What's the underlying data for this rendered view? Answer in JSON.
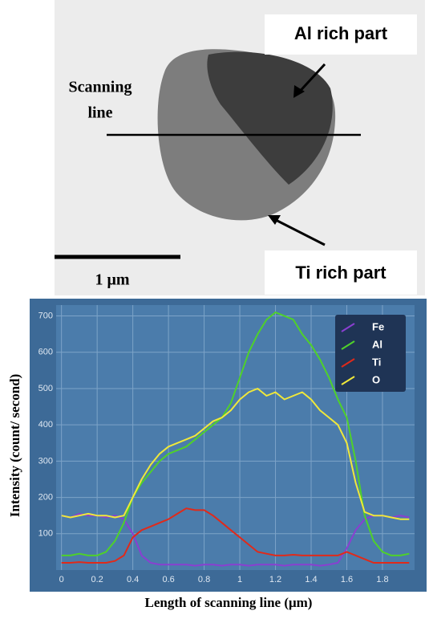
{
  "micrograph": {
    "al_label": "Al rich part",
    "scan_label": [
      "Scanning",
      "line"
    ],
    "ti_label": "Ti rich part",
    "scale_label": "1 μm"
  },
  "chart_data": {
    "type": "line",
    "xlabel": "Length of scanning line (μm)",
    "ylabel": "Intensity (count/ second)",
    "x": [
      0,
      0.05,
      0.1,
      0.15,
      0.2,
      0.25,
      0.3,
      0.35,
      0.4,
      0.45,
      0.5,
      0.55,
      0.6,
      0.65,
      0.7,
      0.75,
      0.8,
      0.85,
      0.9,
      0.95,
      1,
      1.05,
      1.1,
      1.15,
      1.2,
      1.25,
      1.3,
      1.35,
      1.4,
      1.45,
      1.5,
      1.55,
      1.6,
      1.65,
      1.7,
      1.75,
      1.8,
      1.85,
      1.9,
      1.95
    ],
    "series": [
      {
        "name": "Fe",
        "color": "#8a3fd1",
        "values": [
          150,
          145,
          155,
          150,
          150,
          145,
          150,
          140,
          100,
          40,
          20,
          15,
          15,
          15,
          15,
          12,
          15,
          15,
          12,
          15,
          15,
          12,
          15,
          15,
          15,
          12,
          15,
          15,
          15,
          12,
          15,
          20,
          60,
          110,
          140,
          150,
          150,
          145,
          150,
          145
        ]
      },
      {
        "name": "Al",
        "color": "#4fd12a",
        "values": [
          40,
          40,
          45,
          40,
          40,
          50,
          80,
          130,
          200,
          240,
          270,
          300,
          320,
          330,
          340,
          360,
          380,
          400,
          420,
          460,
          530,
          600,
          650,
          690,
          710,
          700,
          690,
          650,
          620,
          580,
          530,
          470,
          420,
          300,
          150,
          80,
          50,
          40,
          40,
          45
        ]
      },
      {
        "name": "Ti",
        "color": "#e02a1a",
        "values": [
          20,
          20,
          22,
          20,
          20,
          20,
          25,
          40,
          90,
          110,
          120,
          130,
          140,
          155,
          170,
          165,
          165,
          150,
          130,
          110,
          90,
          70,
          50,
          45,
          40,
          40,
          42,
          40,
          40,
          40,
          40,
          40,
          50,
          40,
          30,
          20,
          20,
          20,
          20,
          20
        ]
      },
      {
        "name": "O",
        "color": "#f0e83a",
        "values": [
          150,
          145,
          150,
          155,
          150,
          150,
          145,
          150,
          200,
          250,
          290,
          320,
          340,
          350,
          360,
          370,
          390,
          410,
          420,
          440,
          470,
          490,
          500,
          480,
          490,
          470,
          480,
          490,
          470,
          440,
          420,
          400,
          350,
          240,
          160,
          150,
          150,
          145,
          140,
          140
        ]
      }
    ],
    "xlim": [
      -0.03,
      1.98
    ],
    "ylim": [
      0,
      730
    ],
    "xticks": [
      0,
      0.2,
      0.4,
      0.6,
      0.8,
      1,
      1.2,
      1.4,
      1.6,
      1.8
    ],
    "yticks": [
      100,
      200,
      300,
      400,
      500,
      600,
      700
    ],
    "grid": true,
    "legend": "upper right"
  }
}
